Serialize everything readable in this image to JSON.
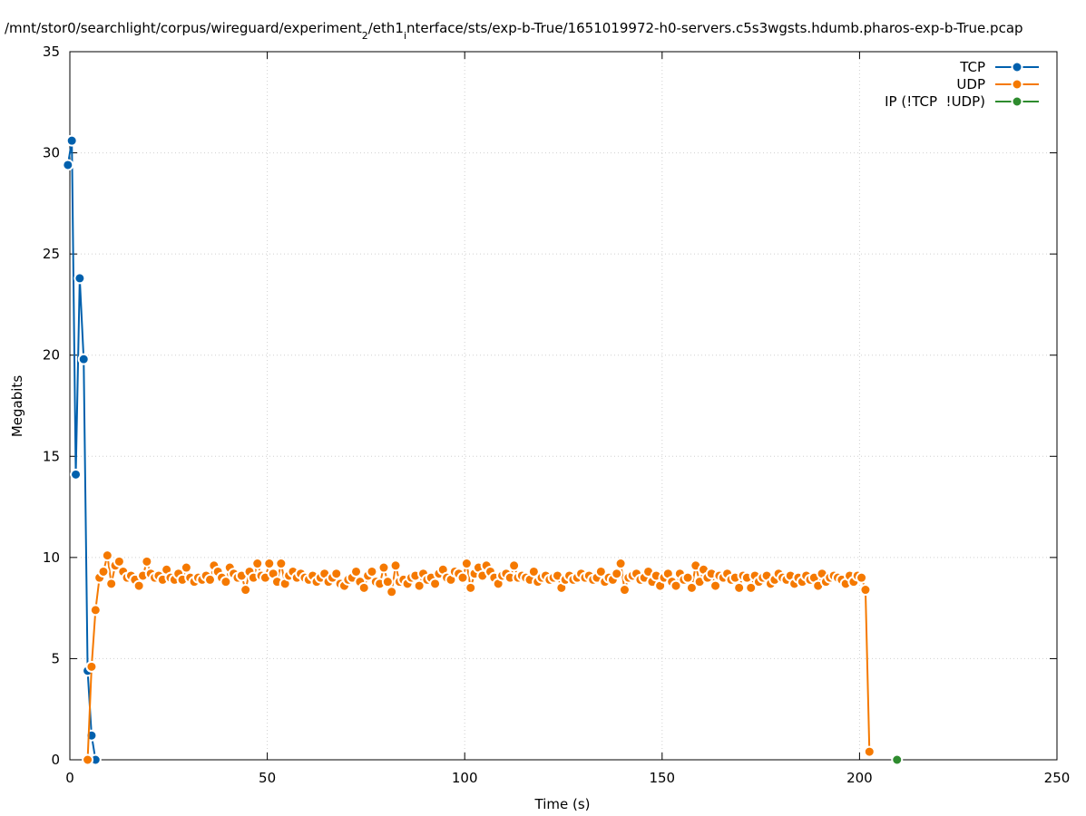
{
  "chart_data": {
    "type": "line",
    "title": [
      "/mnt/stor0/searchlight/corpus/wireguard/experiment",
      "2",
      "/eth1",
      "i",
      "nterface/sts/exp-b-True/1651019972-h0-servers.c5s3wgsts.hdumb.pharos-exp-b-True.pcap"
    ],
    "x_label": "Time (s)",
    "y_label": "Megabits",
    "xlim": [
      0,
      250
    ],
    "xticks": [
      0,
      50,
      100,
      150,
      200,
      250
    ],
    "ylim": [
      0,
      35
    ],
    "yticks": [
      0,
      5,
      10,
      15,
      20,
      25,
      30,
      35
    ],
    "grid": true,
    "legend": "top-right",
    "series": [
      {
        "name": "TCP",
        "color": "#0060ad",
        "x": [
          -0.5,
          0.5,
          1.5,
          2.5,
          3.5,
          4.5,
          5.5,
          6.5
        ],
        "values": [
          29.4,
          30.6,
          14.1,
          23.8,
          19.8,
          4.4,
          1.2,
          0
        ]
      },
      {
        "name": "UDP",
        "color": "#f57900",
        "x": [
          4.5,
          5.5,
          6.5,
          7.5,
          8.5,
          9.5,
          10.5,
          11.5,
          12.5,
          13.5,
          14.5,
          15.5,
          16.5,
          17.5,
          18.5,
          19.5,
          20.5,
          21.5,
          22.5,
          23.5,
          24.5,
          25.5,
          26.5,
          27.5,
          28.5,
          29.5,
          30.5,
          31.5,
          32.5,
          33.5,
          34.5,
          35.5,
          36.5,
          37.5,
          38.5,
          39.5,
          40.5,
          41.5,
          42.5,
          43.5,
          44.5,
          45.5,
          46.5,
          47.5,
          48.5,
          49.5,
          50.5,
          51.5,
          52.5,
          53.5,
          54.5,
          55.5,
          56.5,
          57.5,
          58.5,
          59.5,
          60.5,
          61.5,
          62.5,
          63.5,
          64.5,
          65.5,
          66.5,
          67.5,
          68.5,
          69.5,
          70.5,
          71.5,
          72.5,
          73.5,
          74.5,
          75.5,
          76.5,
          77.5,
          78.5,
          79.5,
          80.5,
          81.5,
          82.5,
          83.5,
          84.5,
          85.5,
          86.5,
          87.5,
          88.5,
          89.5,
          90.5,
          91.5,
          92.5,
          93.5,
          94.5,
          95.5,
          96.5,
          97.5,
          98.5,
          99.5,
          100.5,
          101.5,
          102.5,
          103.5,
          104.5,
          105.5,
          106.5,
          107.5,
          108.5,
          109.5,
          110.5,
          111.5,
          112.5,
          113.5,
          114.5,
          115.5,
          116.5,
          117.5,
          118.5,
          119.5,
          120.5,
          121.5,
          122.5,
          123.5,
          124.5,
          125.5,
          126.5,
          127.5,
          128.5,
          129.5,
          130.5,
          131.5,
          132.5,
          133.5,
          134.5,
          135.5,
          136.5,
          137.5,
          138.5,
          139.5,
          140.5,
          141.5,
          142.5,
          143.5,
          144.5,
          145.5,
          146.5,
          147.5,
          148.5,
          149.5,
          150.5,
          151.5,
          152.5,
          153.5,
          154.5,
          155.5,
          156.5,
          157.5,
          158.5,
          159.5,
          160.5,
          161.5,
          162.5,
          163.5,
          164.5,
          165.5,
          166.5,
          167.5,
          168.5,
          169.5,
          170.5,
          171.5,
          172.5,
          173.5,
          174.5,
          175.5,
          176.5,
          177.5,
          178.5,
          179.5,
          180.5,
          181.5,
          182.5,
          183.5,
          184.5,
          185.5,
          186.5,
          187.5,
          188.5,
          189.5,
          190.5,
          191.5,
          192.5,
          193.5,
          194.5,
          195.5,
          196.5,
          197.5,
          198.5,
          199.5,
          200.5,
          201.5,
          202.5
        ],
        "values": [
          0,
          4.6,
          7.4,
          9.0,
          9.3,
          10.1,
          8.7,
          9.6,
          9.8,
          9.3,
          9.0,
          9.1,
          8.9,
          8.6,
          9.1,
          9.8,
          9.2,
          9.0,
          9.1,
          8.9,
          9.4,
          9.0,
          8.9,
          9.2,
          8.9,
          9.5,
          9.0,
          8.8,
          9.0,
          8.9,
          9.1,
          8.9,
          9.6,
          9.3,
          9.0,
          8.8,
          9.5,
          9.2,
          9.0,
          9.1,
          8.4,
          9.3,
          9.0,
          9.7,
          9.1,
          9.0,
          9.7,
          9.2,
          8.8,
          9.7,
          8.7,
          9.1,
          9.3,
          9.0,
          9.2,
          9.0,
          8.9,
          9.1,
          8.8,
          9.0,
          9.2,
          8.8,
          9.0,
          9.2,
          8.7,
          8.6,
          8.9,
          9.0,
          9.3,
          8.8,
          8.5,
          9.1,
          9.3,
          8.8,
          8.7,
          9.5,
          8.8,
          8.3,
          9.6,
          8.8,
          8.9,
          8.7,
          9.0,
          9.1,
          8.6,
          9.2,
          8.9,
          9.0,
          8.7,
          9.2,
          9.4,
          9.0,
          8.9,
          9.3,
          9.2,
          9.0,
          9.7,
          8.5,
          9.2,
          9.5,
          9.1,
          9.6,
          9.3,
          9.0,
          8.7,
          9.1,
          9.2,
          9.0,
          9.6,
          9.0,
          9.1,
          9.0,
          8.9,
          9.3,
          8.8,
          9.0,
          9.1,
          8.9,
          9.0,
          9.1,
          8.5,
          8.9,
          9.1,
          8.9,
          9.0,
          9.2,
          9.0,
          9.1,
          8.9,
          9.0,
          9.3,
          8.8,
          9.0,
          8.9,
          9.2,
          9.7,
          8.4,
          9.0,
          9.1,
          9.2,
          8.9,
          9.0,
          9.3,
          8.8,
          9.1,
          8.6,
          9.0,
          9.2,
          8.8,
          8.6,
          9.2,
          8.9,
          9.0,
          8.5,
          9.6,
          8.8,
          9.4,
          9.0,
          9.2,
          8.6,
          9.1,
          9.0,
          9.2,
          8.9,
          9.0,
          8.5,
          9.1,
          9.0,
          8.5,
          9.1,
          8.8,
          9.0,
          9.1,
          8.7,
          8.9,
          9.2,
          9.0,
          8.9,
          9.1,
          8.7,
          9.0,
          8.8,
          9.1,
          8.9,
          9.0,
          8.6,
          9.2,
          8.8,
          9.0,
          9.1,
          9.0,
          8.9,
          8.7,
          9.1,
          8.8,
          9.1,
          9.0,
          8.4,
          0.4
        ]
      },
      {
        "name": "IP (!TCP  !UDP)",
        "color": "#2e8b2e",
        "x": [
          209.5
        ],
        "values": [
          0
        ]
      }
    ]
  }
}
